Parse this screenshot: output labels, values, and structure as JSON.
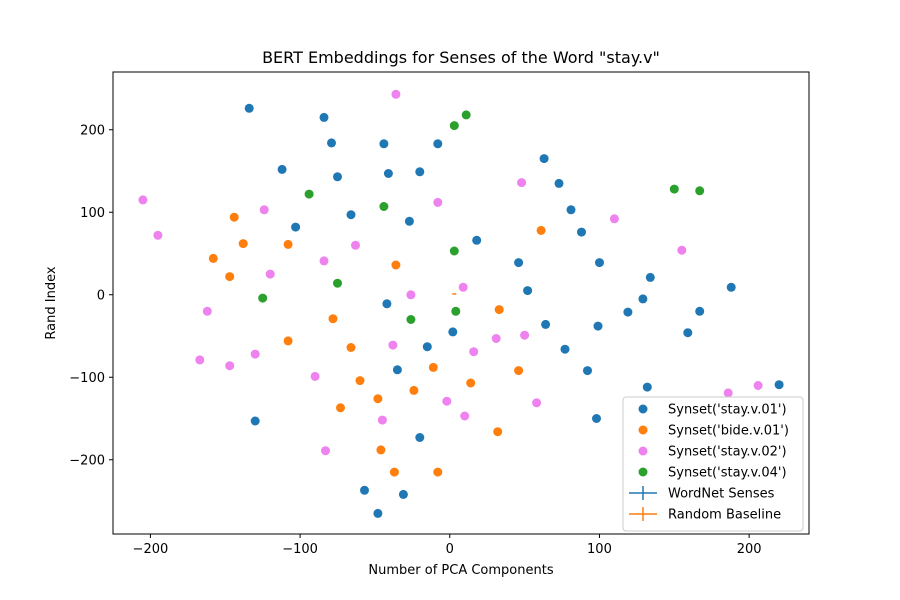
{
  "chart_data": {
    "type": "scatter",
    "title": "BERT Embeddings for Senses of the Word \"stay.v\"",
    "xlabel": "Number of PCA Components",
    "ylabel": "Rand Index",
    "xlim": [
      -225,
      240
    ],
    "ylim": [
      -290,
      270
    ],
    "xticks": [
      -200,
      -100,
      0,
      100,
      200
    ],
    "yticks": [
      -200,
      -100,
      0,
      100,
      200
    ],
    "grid": false,
    "legend_position": "lower-right",
    "series": [
      {
        "name": "Synset('stay.v.01')",
        "color": "#1f77b4",
        "points": [
          [
            -134,
            226
          ],
          [
            -84,
            215
          ],
          [
            -79,
            184
          ],
          [
            -44,
            183
          ],
          [
            -8,
            183
          ],
          [
            -112,
            152
          ],
          [
            -75,
            143
          ],
          [
            -41,
            147
          ],
          [
            -20,
            149
          ],
          [
            -66,
            97
          ],
          [
            -27,
            89
          ],
          [
            -103,
            82
          ],
          [
            18,
            66
          ],
          [
            63,
            165
          ],
          [
            73,
            135
          ],
          [
            81,
            103
          ],
          [
            88,
            76
          ],
          [
            46,
            39
          ],
          [
            52,
            5
          ],
          [
            100,
            39
          ],
          [
            134,
            21
          ],
          [
            188,
            9
          ],
          [
            129,
            -5
          ],
          [
            119,
            -21
          ],
          [
            167,
            -20
          ],
          [
            -42,
            -11
          ],
          [
            2,
            -45
          ],
          [
            -15,
            -63
          ],
          [
            64,
            -36
          ],
          [
            99,
            -38
          ],
          [
            159,
            -46
          ],
          [
            77,
            -66
          ],
          [
            -35,
            -91
          ],
          [
            92,
            -92
          ],
          [
            132,
            -112
          ],
          [
            220,
            -109
          ],
          [
            -130,
            -153
          ],
          [
            98,
            -150
          ],
          [
            -20,
            -173
          ],
          [
            -57,
            -237
          ],
          [
            -31,
            -242
          ],
          [
            -48,
            -265
          ]
        ]
      },
      {
        "name": "Synset('bide.v.01')",
        "color": "#ff7f0e",
        "points": [
          [
            -144,
            94
          ],
          [
            -138,
            62
          ],
          [
            -158,
            44
          ],
          [
            -147,
            22
          ],
          [
            -108,
            61
          ],
          [
            -36,
            36
          ],
          [
            61,
            78
          ],
          [
            -78,
            -29
          ],
          [
            33,
            -18
          ],
          [
            -108,
            -56
          ],
          [
            -66,
            -64
          ],
          [
            -60,
            -104
          ],
          [
            -11,
            -88
          ],
          [
            46,
            -92
          ],
          [
            14,
            -107
          ],
          [
            -73,
            -137
          ],
          [
            -24,
            -116
          ],
          [
            -48,
            -126
          ],
          [
            32,
            -166
          ],
          [
            -46,
            -188
          ],
          [
            -37,
            -215
          ],
          [
            -8,
            -215
          ]
        ]
      },
      {
        "name": "Synset('stay.v.02')",
        "color": "#ee82ee",
        "points": [
          [
            -36,
            243
          ],
          [
            -205,
            115
          ],
          [
            -195,
            72
          ],
          [
            -124,
            103
          ],
          [
            -8,
            112
          ],
          [
            48,
            136
          ],
          [
            110,
            92
          ],
          [
            -63,
            60
          ],
          [
            -120,
            25
          ],
          [
            -84,
            41
          ],
          [
            155,
            54
          ],
          [
            -162,
            -20
          ],
          [
            -26,
            0
          ],
          [
            9,
            9
          ],
          [
            -167,
            -79
          ],
          [
            -130,
            -72
          ],
          [
            -147,
            -86
          ],
          [
            -38,
            -61
          ],
          [
            16,
            -69
          ],
          [
            31,
            -53
          ],
          [
            50,
            -49
          ],
          [
            -90,
            -99
          ],
          [
            -2,
            -129
          ],
          [
            10,
            -147
          ],
          [
            -45,
            -152
          ],
          [
            58,
            -131
          ],
          [
            -83,
            -189
          ],
          [
            186,
            -119
          ],
          [
            206,
            -110
          ]
        ]
      },
      {
        "name": "Synset('stay.v.04')",
        "color": "#2ca02c",
        "points": [
          [
            11,
            218
          ],
          [
            3,
            205
          ],
          [
            -94,
            122
          ],
          [
            -44,
            107
          ],
          [
            150,
            128
          ],
          [
            167,
            126
          ],
          [
            3,
            53
          ],
          [
            -75,
            14
          ],
          [
            -125,
            -4
          ],
          [
            4,
            -20
          ],
          [
            -26,
            -30
          ]
        ]
      }
    ],
    "error_series": [
      {
        "name": "WordNet Senses",
        "color": "#1f77b4",
        "points": []
      },
      {
        "name": "Random Baseline",
        "color": "#ff7f0e",
        "points": [
          [
            3,
            1
          ]
        ]
      }
    ]
  }
}
